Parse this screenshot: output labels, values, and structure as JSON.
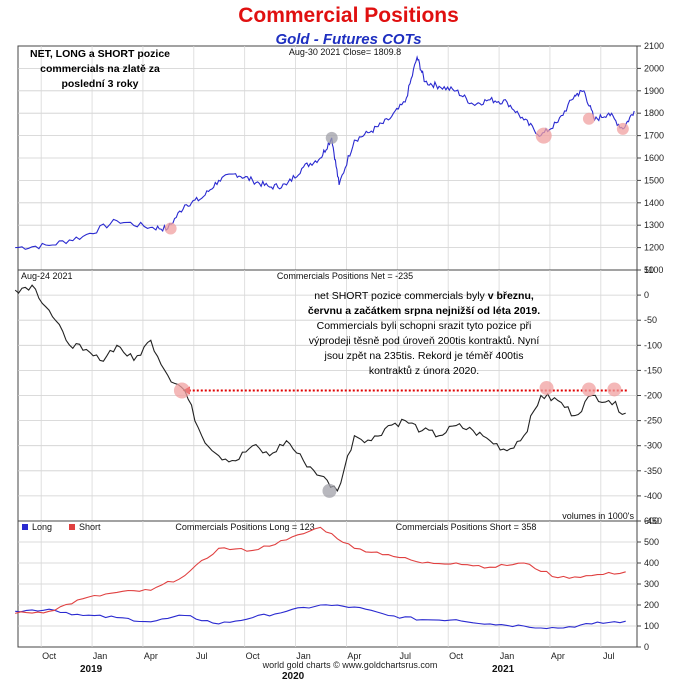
{
  "title": "Commercial Positions",
  "subtitle": "Gold - Futures COTs",
  "colors": {
    "price_line": "#2a2ad0",
    "net_line": "#222222",
    "long_line": "#2a2ad0",
    "short_line": "#e04040",
    "dotted_line": "#e00000",
    "highlight_pink": "#f0a0a0",
    "highlight_gray": "#a0a0a8"
  },
  "notes": {
    "top_left": "NET, LONG a SHORT pozice commercials na zlatě za poslední 3 roky",
    "middle_parts": [
      {
        "text": "net SHORT pozice commercials byly ",
        "bold": false
      },
      {
        "text": "v březnu, červnu a začátkem srpna nejnižší od léta 2019.",
        "bold": true
      },
      {
        "text": " Commercials byli schopni srazit tyto pozice při výprodeji těsně pod úroveň 200tis kontraktů. Nyní jsou zpět na 235tis. Rekord je téměř 400tis kontraktů z února 2020.",
        "bold": false
      }
    ]
  },
  "x_axis": {
    "month_labels": [
      "Oct",
      "Jan",
      "Apr",
      "Jul",
      "Oct",
      "Jan",
      "Apr",
      "Jul",
      "Oct",
      "Jan",
      "Apr",
      "Jul"
    ],
    "year_labels": [
      "2019",
      "2020",
      "2021"
    ]
  },
  "footer": "world gold charts © www.goldchartsrus.com",
  "chart_data": [
    {
      "type": "line",
      "header_left": "",
      "header_center": "Aug-30  2021   Close= 1809.8",
      "ylim": [
        1100,
        2100
      ],
      "yticks": [
        1100,
        1200,
        1300,
        1400,
        1500,
        1600,
        1700,
        1800,
        1900,
        2000,
        2100
      ],
      "series": [
        {
          "x": [
            "2018-08",
            "2018-10",
            "2018-12",
            "2019-02",
            "2019-04",
            "2019-05",
            "2019-06",
            "2019-07",
            "2019-08",
            "2019-09",
            "2019-10",
            "2019-11",
            "2019-12",
            "2020-01",
            "2020-02",
            "2020-03-05",
            "2020-03-18",
            "2020-04",
            "2020-05",
            "2020-06",
            "2020-07",
            "2020-08-06",
            "2020-08-20",
            "2020-09",
            "2020-10",
            "2020-11",
            "2020-12",
            "2021-01",
            "2021-02",
            "2021-03",
            "2021-04",
            "2021-05",
            "2021-06-01",
            "2021-06-20",
            "2021-07",
            "2021-08-10",
            "2021-08-30"
          ],
          "y": [
            1200,
            1210,
            1250,
            1320,
            1290,
            1285,
            1390,
            1420,
            1500,
            1530,
            1500,
            1470,
            1480,
            1560,
            1600,
            1690,
            1480,
            1680,
            1720,
            1770,
            1850,
            2050,
            1940,
            1920,
            1900,
            1840,
            1860,
            1850,
            1770,
            1700,
            1760,
            1880,
            1900,
            1770,
            1800,
            1730,
            1810
          ]
        }
      ]
    },
    {
      "type": "line",
      "header_left": "Aug-24  2021",
      "header_center": "Commercials Positions Net = -235",
      "footnote": "volumes in 1000's",
      "ylim": [
        -450,
        50
      ],
      "yticks": [
        50,
        0,
        -50,
        -100,
        -150,
        -200,
        -250,
        -300,
        -350,
        -400,
        -450
      ],
      "reference_line": -190,
      "series": [
        {
          "x": [
            "2018-08",
            "2018-09",
            "2018-10",
            "2018-11",
            "2018-12",
            "2019-01",
            "2019-02",
            "2019-03",
            "2019-04",
            "2019-05",
            "2019-06",
            "2019-07",
            "2019-08",
            "2019-09",
            "2019-10",
            "2019-11",
            "2019-12",
            "2020-01",
            "2020-02",
            "2020-03",
            "2020-04",
            "2020-05",
            "2020-06",
            "2020-07",
            "2020-08",
            "2020-09",
            "2020-10",
            "2020-11",
            "2020-12",
            "2021-01",
            "2021-02",
            "2021-03",
            "2021-04",
            "2021-05",
            "2021-06",
            "2021-07",
            "2021-08"
          ],
          "y": [
            10,
            20,
            -30,
            -90,
            -110,
            -130,
            -100,
            -130,
            -90,
            -160,
            -190,
            -280,
            -320,
            -330,
            -300,
            -320,
            -290,
            -330,
            -360,
            -390,
            -280,
            -290,
            -260,
            -250,
            -270,
            -280,
            -260,
            -270,
            -290,
            -310,
            -280,
            -200,
            -210,
            -240,
            -200,
            -210,
            -235
          ]
        }
      ]
    },
    {
      "type": "line",
      "header_center": "Commercials Positions Long = 123",
      "header_right": "Commercials Positions Short = 358",
      "ylim": [
        0,
        600
      ],
      "yticks": [
        0,
        100,
        200,
        300,
        400,
        500,
        600
      ],
      "series": [
        {
          "name": "Long",
          "x": [
            "2018-08",
            "2018-10",
            "2018-12",
            "2019-02",
            "2019-04",
            "2019-06",
            "2019-08",
            "2019-10",
            "2019-12",
            "2020-02",
            "2020-04",
            "2020-06",
            "2020-08",
            "2020-10",
            "2020-12",
            "2021-02",
            "2021-04",
            "2021-06",
            "2021-08"
          ],
          "y": [
            170,
            180,
            150,
            140,
            120,
            150,
            110,
            140,
            170,
            200,
            190,
            150,
            130,
            130,
            110,
            100,
            90,
            110,
            123
          ]
        },
        {
          "name": "Short",
          "x": [
            "2018-08",
            "2018-10",
            "2018-12",
            "2019-02",
            "2019-04",
            "2019-06",
            "2019-08",
            "2019-10",
            "2019-12",
            "2020-02",
            "2020-04",
            "2020-06",
            "2020-08",
            "2020-10",
            "2020-12",
            "2021-02",
            "2021-04",
            "2021-06",
            "2021-08"
          ],
          "y": [
            160,
            170,
            230,
            260,
            270,
            340,
            470,
            460,
            510,
            570,
            470,
            440,
            400,
            400,
            380,
            400,
            330,
            340,
            358
          ]
        }
      ]
    }
  ]
}
